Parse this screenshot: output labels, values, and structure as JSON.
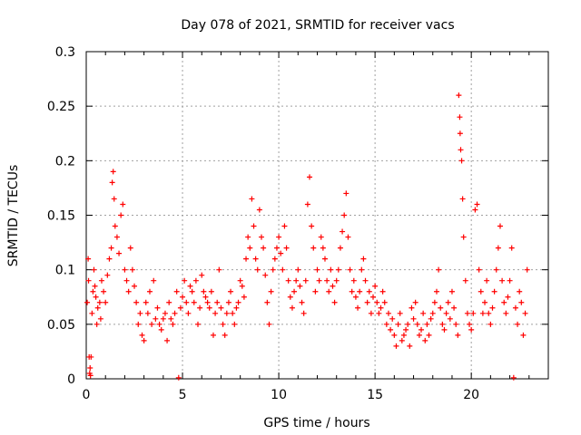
{
  "chart_data": {
    "type": "scatter",
    "title": "Day 078 of 2021, SRMTID for receiver vacs",
    "xlabel": "GPS time / hours",
    "ylabel": "SRMTID / TECUs",
    "xlim": [
      0,
      24
    ],
    "ylim": [
      0,
      0.3
    ],
    "xticks": [
      {
        "value": 0,
        "label": "0"
      },
      {
        "value": 5,
        "label": "5"
      },
      {
        "value": 10,
        "label": "10"
      },
      {
        "value": 15,
        "label": "15"
      },
      {
        "value": 20,
        "label": "20"
      }
    ],
    "yticks": [
      {
        "value": 0,
        "label": "0"
      },
      {
        "value": 0.05,
        "label": "0.05"
      },
      {
        "value": 0.1,
        "label": "0.1"
      },
      {
        "value": 0.15,
        "label": "0.15"
      },
      {
        "value": 0.2,
        "label": "0.2"
      },
      {
        "value": 0.25,
        "label": "0.25"
      },
      {
        "value": 0.3,
        "label": "0.3"
      }
    ],
    "grid": true,
    "marker": "+",
    "series": [
      {
        "name": "SRMTID",
        "color": "#ff0000",
        "points": [
          [
            0.05,
            0.07
          ],
          [
            0.1,
            0.11
          ],
          [
            0.12,
            0.09
          ],
          [
            0.15,
            0.02
          ],
          [
            0.18,
            0.005
          ],
          [
            0.2,
            0.01
          ],
          [
            0.22,
            0.003
          ],
          [
            0.25,
            0.02
          ],
          [
            0.3,
            0.06
          ],
          [
            0.35,
            0.08
          ],
          [
            0.4,
            0.1
          ],
          [
            0.45,
            0.085
          ],
          [
            0.5,
            0.075
          ],
          [
            0.55,
            0.05
          ],
          [
            0.6,
            0.065
          ],
          [
            0.7,
            0.07
          ],
          [
            0.75,
            0.055
          ],
          [
            0.8,
            0.09
          ],
          [
            0.9,
            0.08
          ],
          [
            1.0,
            0.07
          ],
          [
            1.1,
            0.095
          ],
          [
            1.2,
            0.11
          ],
          [
            1.3,
            0.12
          ],
          [
            1.35,
            0.18
          ],
          [
            1.4,
            0.19
          ],
          [
            1.45,
            0.165
          ],
          [
            1.5,
            0.14
          ],
          [
            1.6,
            0.13
          ],
          [
            1.7,
            0.115
          ],
          [
            1.8,
            0.15
          ],
          [
            1.9,
            0.16
          ],
          [
            2.0,
            0.1
          ],
          [
            2.1,
            0.09
          ],
          [
            2.2,
            0.08
          ],
          [
            2.3,
            0.12
          ],
          [
            2.4,
            0.1
          ],
          [
            2.5,
            0.085
          ],
          [
            2.6,
            0.07
          ],
          [
            2.7,
            0.05
          ],
          [
            2.8,
            0.06
          ],
          [
            2.9,
            0.04
          ],
          [
            3.0,
            0.035
          ],
          [
            3.1,
            0.07
          ],
          [
            3.2,
            0.06
          ],
          [
            3.3,
            0.08
          ],
          [
            3.4,
            0.05
          ],
          [
            3.5,
            0.09
          ],
          [
            3.6,
            0.055
          ],
          [
            3.7,
            0.065
          ],
          [
            3.8,
            0.05
          ],
          [
            3.9,
            0.045
          ],
          [
            4.0,
            0.055
          ],
          [
            4.1,
            0.06
          ],
          [
            4.2,
            0.035
          ],
          [
            4.3,
            0.07
          ],
          [
            4.4,
            0.055
          ],
          [
            4.5,
            0.05
          ],
          [
            4.6,
            0.06
          ],
          [
            4.7,
            0.08
          ],
          [
            4.8,
            0.001
          ],
          [
            4.9,
            0.065
          ],
          [
            5.0,
            0.075
          ],
          [
            5.1,
            0.09
          ],
          [
            5.2,
            0.07
          ],
          [
            5.3,
            0.06
          ],
          [
            5.4,
            0.085
          ],
          [
            5.5,
            0.08
          ],
          [
            5.6,
            0.07
          ],
          [
            5.7,
            0.09
          ],
          [
            5.8,
            0.05
          ],
          [
            5.9,
            0.065
          ],
          [
            6.0,
            0.095
          ],
          [
            6.1,
            0.08
          ],
          [
            6.2,
            0.075
          ],
          [
            6.3,
            0.07
          ],
          [
            6.4,
            0.065
          ],
          [
            6.5,
            0.08
          ],
          [
            6.6,
            0.04
          ],
          [
            6.7,
            0.06
          ],
          [
            6.8,
            0.07
          ],
          [
            6.9,
            0.1
          ],
          [
            7.0,
            0.065
          ],
          [
            7.1,
            0.05
          ],
          [
            7.2,
            0.04
          ],
          [
            7.3,
            0.06
          ],
          [
            7.4,
            0.07
          ],
          [
            7.5,
            0.08
          ],
          [
            7.6,
            0.06
          ],
          [
            7.7,
            0.05
          ],
          [
            7.8,
            0.065
          ],
          [
            7.9,
            0.07
          ],
          [
            8.0,
            0.09
          ],
          [
            8.1,
            0.085
          ],
          [
            8.2,
            0.075
          ],
          [
            8.3,
            0.11
          ],
          [
            8.4,
            0.13
          ],
          [
            8.5,
            0.12
          ],
          [
            8.6,
            0.165
          ],
          [
            8.7,
            0.14
          ],
          [
            8.8,
            0.11
          ],
          [
            8.9,
            0.1
          ],
          [
            9.0,
            0.155
          ],
          [
            9.1,
            0.13
          ],
          [
            9.2,
            0.12
          ],
          [
            9.3,
            0.095
          ],
          [
            9.4,
            0.07
          ],
          [
            9.5,
            0.05
          ],
          [
            9.6,
            0.08
          ],
          [
            9.7,
            0.1
          ],
          [
            9.8,
            0.11
          ],
          [
            9.9,
            0.12
          ],
          [
            10.0,
            0.13
          ],
          [
            10.1,
            0.115
          ],
          [
            10.2,
            0.1
          ],
          [
            10.3,
            0.14
          ],
          [
            10.4,
            0.12
          ],
          [
            10.5,
            0.09
          ],
          [
            10.6,
            0.075
          ],
          [
            10.7,
            0.065
          ],
          [
            10.8,
            0.08
          ],
          [
            10.9,
            0.09
          ],
          [
            11.0,
            0.1
          ],
          [
            11.1,
            0.085
          ],
          [
            11.2,
            0.07
          ],
          [
            11.3,
            0.06
          ],
          [
            11.4,
            0.09
          ],
          [
            11.5,
            0.16
          ],
          [
            11.6,
            0.185
          ],
          [
            11.7,
            0.14
          ],
          [
            11.8,
            0.12
          ],
          [
            11.9,
            0.08
          ],
          [
            12.0,
            0.1
          ],
          [
            12.1,
            0.09
          ],
          [
            12.2,
            0.13
          ],
          [
            12.3,
            0.12
          ],
          [
            12.4,
            0.11
          ],
          [
            12.5,
            0.09
          ],
          [
            12.6,
            0.08
          ],
          [
            12.7,
            0.1
          ],
          [
            12.8,
            0.085
          ],
          [
            12.9,
            0.07
          ],
          [
            13.0,
            0.09
          ],
          [
            13.1,
            0.1
          ],
          [
            13.2,
            0.12
          ],
          [
            13.3,
            0.135
          ],
          [
            13.4,
            0.15
          ],
          [
            13.5,
            0.17
          ],
          [
            13.6,
            0.13
          ],
          [
            13.7,
            0.1
          ],
          [
            13.8,
            0.08
          ],
          [
            13.9,
            0.09
          ],
          [
            14.0,
            0.075
          ],
          [
            14.1,
            0.065
          ],
          [
            14.2,
            0.08
          ],
          [
            14.3,
            0.1
          ],
          [
            14.4,
            0.11
          ],
          [
            14.5,
            0.09
          ],
          [
            14.6,
            0.07
          ],
          [
            14.7,
            0.08
          ],
          [
            14.8,
            0.06
          ],
          [
            14.9,
            0.075
          ],
          [
            15.0,
            0.085
          ],
          [
            15.1,
            0.07
          ],
          [
            15.2,
            0.06
          ],
          [
            15.3,
            0.065
          ],
          [
            15.4,
            0.08
          ],
          [
            15.5,
            0.07
          ],
          [
            15.6,
            0.05
          ],
          [
            15.7,
            0.06
          ],
          [
            15.8,
            0.045
          ],
          [
            15.9,
            0.055
          ],
          [
            16.0,
            0.04
          ],
          [
            16.1,
            0.03
          ],
          [
            16.2,
            0.05
          ],
          [
            16.3,
            0.06
          ],
          [
            16.4,
            0.035
          ],
          [
            16.5,
            0.04
          ],
          [
            16.6,
            0.045
          ],
          [
            16.7,
            0.05
          ],
          [
            16.8,
            0.03
          ],
          [
            16.9,
            0.065
          ],
          [
            17.0,
            0.055
          ],
          [
            17.1,
            0.07
          ],
          [
            17.2,
            0.05
          ],
          [
            17.3,
            0.04
          ],
          [
            17.4,
            0.045
          ],
          [
            17.5,
            0.06
          ],
          [
            17.6,
            0.035
          ],
          [
            17.7,
            0.05
          ],
          [
            17.8,
            0.04
          ],
          [
            17.9,
            0.055
          ],
          [
            18.0,
            0.06
          ],
          [
            18.1,
            0.07
          ],
          [
            18.2,
            0.08
          ],
          [
            18.3,
            0.1
          ],
          [
            18.4,
            0.065
          ],
          [
            18.5,
            0.05
          ],
          [
            18.6,
            0.045
          ],
          [
            18.7,
            0.06
          ],
          [
            18.8,
            0.07
          ],
          [
            18.9,
            0.055
          ],
          [
            19.0,
            0.08
          ],
          [
            19.1,
            0.065
          ],
          [
            19.2,
            0.05
          ],
          [
            19.3,
            0.04
          ],
          [
            19.35,
            0.26
          ],
          [
            19.4,
            0.24
          ],
          [
            19.42,
            0.225
          ],
          [
            19.45,
            0.21
          ],
          [
            19.5,
            0.2
          ],
          [
            19.55,
            0.165
          ],
          [
            19.6,
            0.13
          ],
          [
            19.7,
            0.09
          ],
          [
            19.8,
            0.06
          ],
          [
            19.9,
            0.05
          ],
          [
            20.0,
            0.045
          ],
          [
            20.1,
            0.06
          ],
          [
            20.2,
            0.155
          ],
          [
            20.3,
            0.16
          ],
          [
            20.4,
            0.1
          ],
          [
            20.5,
            0.08
          ],
          [
            20.6,
            0.06
          ],
          [
            20.7,
            0.07
          ],
          [
            20.8,
            0.09
          ],
          [
            20.9,
            0.06
          ],
          [
            21.0,
            0.05
          ],
          [
            21.1,
            0.065
          ],
          [
            21.2,
            0.08
          ],
          [
            21.3,
            0.1
          ],
          [
            21.4,
            0.12
          ],
          [
            21.5,
            0.14
          ],
          [
            21.6,
            0.09
          ],
          [
            21.7,
            0.07
          ],
          [
            21.8,
            0.06
          ],
          [
            21.9,
            0.075
          ],
          [
            22.0,
            0.09
          ],
          [
            22.1,
            0.12
          ],
          [
            22.2,
            0.001
          ],
          [
            22.3,
            0.065
          ],
          [
            22.4,
            0.05
          ],
          [
            22.5,
            0.08
          ],
          [
            22.6,
            0.07
          ],
          [
            22.7,
            0.04
          ],
          [
            22.8,
            0.06
          ],
          [
            22.9,
            0.1
          ]
        ]
      }
    ]
  }
}
